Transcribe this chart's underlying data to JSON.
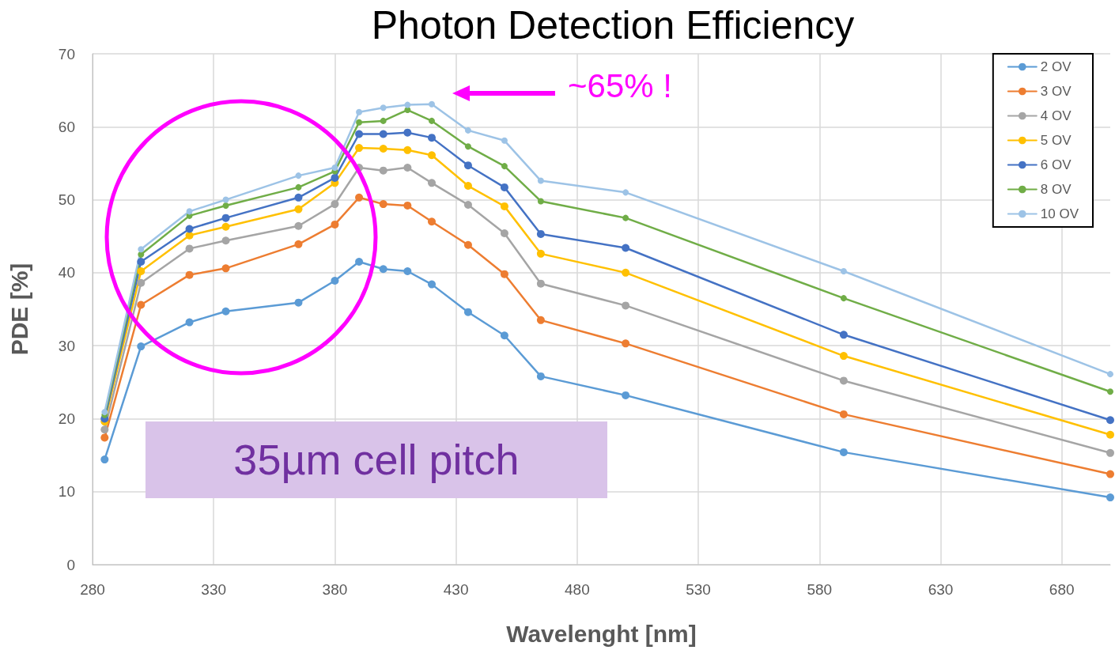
{
  "chart_data": {
    "type": "line",
    "title": "Photon Detection Efficiency",
    "xlabel": "Wavelenght [nm]",
    "ylabel": "PDE [%]",
    "x": [
      285,
      300,
      320,
      335,
      365,
      380,
      390,
      400,
      410,
      420,
      435,
      450,
      465,
      500,
      590,
      700
    ],
    "series": [
      {
        "name": "2 OV",
        "color": "#5b9bd5",
        "values": [
          14.4,
          29.9,
          33.2,
          34.7,
          35.9,
          38.9,
          41.5,
          40.5,
          40.2,
          38.4,
          34.6,
          31.4,
          25.8,
          23.2,
          15.4,
          9.2
        ]
      },
      {
        "name": "3 OV",
        "color": "#ed7d31",
        "values": [
          17.4,
          35.6,
          39.7,
          40.6,
          43.9,
          46.6,
          50.3,
          49.4,
          49.2,
          47.0,
          43.8,
          39.8,
          33.5,
          30.3,
          20.6,
          12.4
        ]
      },
      {
        "name": "4 OV",
        "color": "#a5a5a5",
        "values": [
          18.5,
          38.6,
          43.3,
          44.4,
          46.4,
          49.4,
          54.4,
          54.0,
          54.4,
          52.3,
          49.3,
          45.4,
          38.5,
          35.5,
          25.2,
          15.3
        ]
      },
      {
        "name": "5 OV",
        "color": "#ffc000",
        "values": [
          19.6,
          40.2,
          45.1,
          46.3,
          48.7,
          52.3,
          57.1,
          57.0,
          56.8,
          56.1,
          51.9,
          49.1,
          42.6,
          40.0,
          28.6,
          17.8
        ]
      },
      {
        "name": "6 OV",
        "color": "#4472c4",
        "values": [
          20.0,
          41.5,
          46.0,
          47.5,
          50.3,
          53.0,
          59.0,
          59.0,
          59.2,
          58.5,
          54.7,
          51.7,
          45.3,
          43.4,
          31.5,
          19.8
        ]
      },
      {
        "name": "8 OV",
        "color": "#70ad47",
        "values": [
          20.5,
          42.5,
          47.8,
          49.2,
          51.7,
          53.9,
          60.6,
          60.8,
          62.3,
          60.8,
          57.3,
          54.6,
          49.8,
          47.5,
          36.5,
          23.7
        ]
      },
      {
        "name": "10 OV",
        "color": "#9dc3e6",
        "values": [
          20.9,
          43.2,
          48.4,
          50.0,
          53.3,
          54.4,
          62.0,
          62.6,
          63.0,
          63.1,
          59.5,
          58.1,
          52.6,
          51.0,
          40.2,
          26.1
        ]
      }
    ],
    "xlim": [
      280,
      700
    ],
    "xticks": [
      280,
      330,
      380,
      430,
      480,
      530,
      580,
      630,
      680
    ],
    "ylim": [
      0,
      70
    ],
    "yticks": [
      0,
      10,
      20,
      30,
      40,
      50,
      60,
      70
    ],
    "annotations": [
      "~65% !",
      "35µm cell pitch"
    ],
    "grid": true,
    "legend": "top right",
    "marker": "circle",
    "line_style": "solid"
  }
}
